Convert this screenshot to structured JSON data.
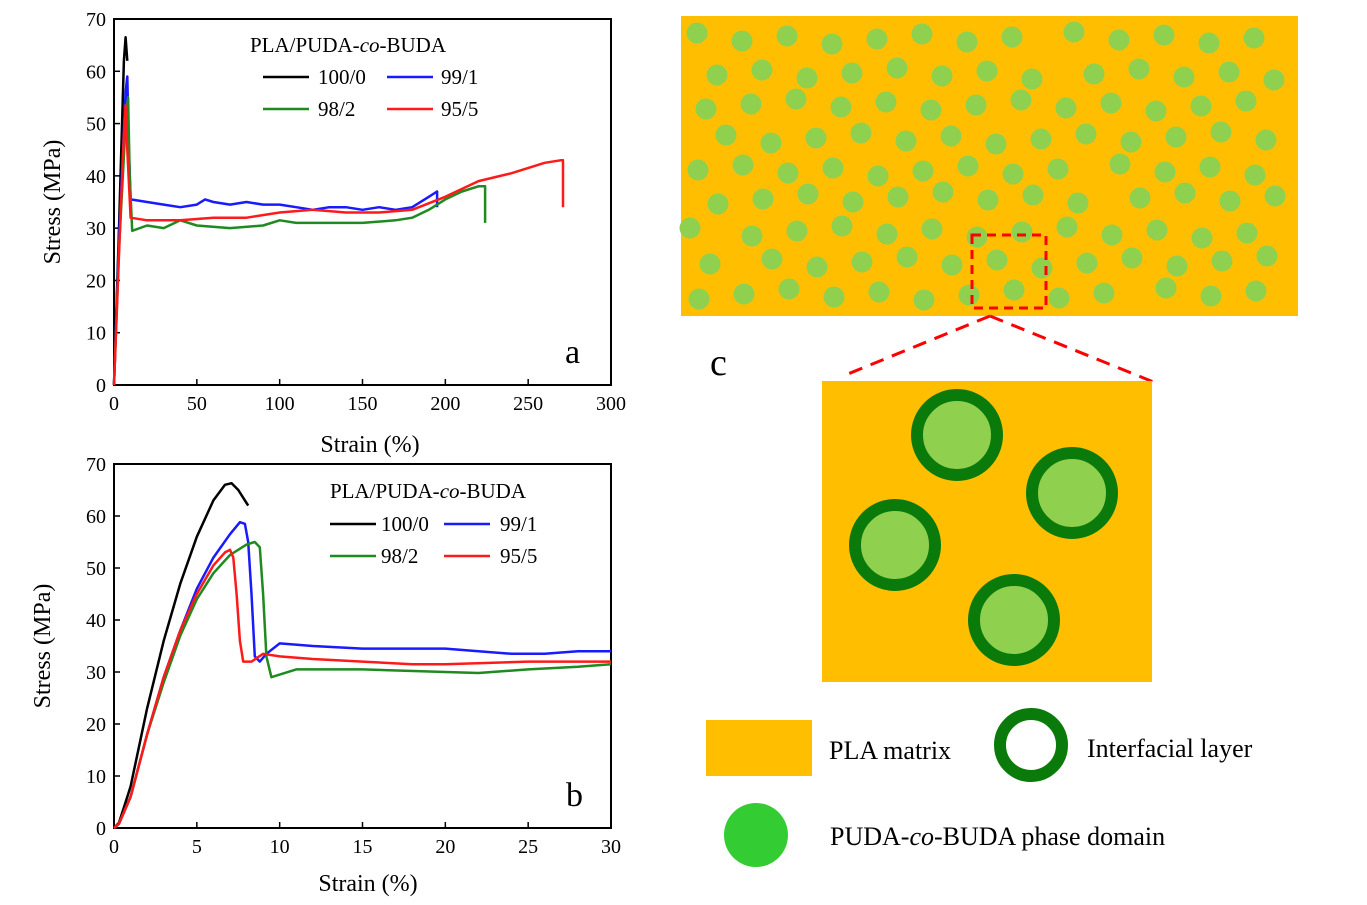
{
  "legend_title": {
    "prefix": "PLA/PUDA-",
    "italic": "co",
    "suffix": "-BUDA"
  },
  "series_colors": {
    "100/0": "#000000",
    "99/1": "#1a1aff",
    "98/2": "#1f8a1f",
    "95/5": "#ff1a1a"
  },
  "chart_data": [
    {
      "type": "line",
      "panel_label": "a",
      "xlabel": "Strain (%)",
      "ylabel": "Stress (MPa)",
      "xlim": [
        0,
        300
      ],
      "ylim": [
        0,
        70
      ],
      "xticks": [
        "0",
        "50",
        "100",
        "150",
        "200",
        "250",
        "300"
      ],
      "yticks": [
        "0",
        "10",
        "20",
        "30",
        "40",
        "50",
        "60",
        "70"
      ],
      "legend_position": "top-center",
      "series": [
        {
          "name": "100/0",
          "x": [
            0,
            3,
            6,
            7,
            8
          ],
          "y": [
            0,
            30,
            62,
            66.5,
            62
          ]
        },
        {
          "name": "99/1",
          "x": [
            0,
            3,
            7,
            8,
            9,
            10,
            20,
            30,
            40,
            50,
            55,
            60,
            70,
            80,
            90,
            100,
            110,
            120,
            130,
            140,
            150,
            160,
            170,
            180,
            190,
            195,
            195
          ],
          "y": [
            0,
            28,
            56,
            59,
            45,
            35.5,
            35,
            34.5,
            34,
            34.5,
            35.5,
            35,
            34.5,
            35,
            34.5,
            34.5,
            34,
            33.5,
            34,
            34,
            33.5,
            34,
            33.5,
            34,
            36,
            37,
            34
          ]
        },
        {
          "name": "98/2",
          "x": [
            0,
            3,
            7,
            8.5,
            9.5,
            11,
            20,
            30,
            40,
            50,
            70,
            90,
            100,
            110,
            130,
            150,
            170,
            180,
            190,
            200,
            210,
            220,
            224,
            224
          ],
          "y": [
            0,
            26,
            50,
            55,
            40,
            29.5,
            30.5,
            30,
            31.5,
            30.5,
            30,
            30.5,
            31.5,
            31,
            31,
            31,
            31.5,
            32,
            33.5,
            35.5,
            37,
            38,
            38,
            31
          ]
        },
        {
          "name": "95/5",
          "x": [
            0,
            3,
            6,
            7,
            8,
            10,
            20,
            40,
            60,
            80,
            100,
            120,
            140,
            160,
            180,
            200,
            220,
            240,
            260,
            270,
            271,
            271
          ],
          "y": [
            0,
            25,
            48,
            53.5,
            45,
            32,
            31.5,
            31.5,
            32,
            32,
            33,
            33.5,
            33,
            33,
            33.5,
            36,
            39,
            40.5,
            42.5,
            43,
            43,
            34
          ]
        }
      ]
    },
    {
      "type": "line",
      "panel_label": "b",
      "xlabel": "Strain (%)",
      "ylabel": "Stress (MPa)",
      "xlim": [
        0,
        30
      ],
      "ylim": [
        0,
        70
      ],
      "xticks": [
        "0",
        "5",
        "10",
        "15",
        "20",
        "25",
        "30"
      ],
      "yticks": [
        "0",
        "10",
        "20",
        "30",
        "40",
        "50",
        "60",
        "70"
      ],
      "legend_position": "top-right",
      "series": [
        {
          "name": "100/0",
          "x": [
            0,
            0.3,
            1,
            2,
            3,
            4,
            5,
            6,
            6.7,
            7.1,
            7.5,
            7.9,
            8.1
          ],
          "y": [
            0,
            1,
            8,
            23,
            36,
            47,
            56,
            63,
            66,
            66.3,
            65,
            63,
            62
          ]
        },
        {
          "name": "99/1",
          "x": [
            0,
            0.3,
            1,
            2,
            3,
            4,
            5,
            6,
            7,
            7.6,
            7.9,
            8.1,
            8.3,
            8.5,
            8.8,
            9.2,
            10,
            12,
            15,
            18,
            20,
            22,
            24,
            26,
            28,
            30
          ],
          "y": [
            0,
            0.8,
            6,
            18,
            29,
            38,
            46,
            52,
            56.5,
            58.8,
            58.5,
            55,
            45,
            33,
            32,
            33.5,
            35.5,
            35,
            34.5,
            34.5,
            34.5,
            34,
            33.5,
            33.5,
            34,
            34
          ]
        },
        {
          "name": "98/2",
          "x": [
            0,
            0.3,
            1,
            2,
            3,
            4,
            5,
            6,
            7,
            8,
            8.5,
            8.8,
            9.0,
            9.2,
            9.5,
            10,
            11,
            15,
            20,
            22,
            25,
            28,
            30
          ],
          "y": [
            0,
            0.8,
            6,
            18,
            28,
            37,
            44,
            49,
            52.5,
            54.5,
            55,
            54,
            45,
            33,
            29,
            29.5,
            30.5,
            30.5,
            30,
            29.8,
            30.5,
            31,
            31.5
          ]
        },
        {
          "name": "95/5",
          "x": [
            0,
            0.3,
            1,
            2,
            3,
            4,
            5,
            6,
            6.7,
            7.0,
            7.2,
            7.4,
            7.6,
            7.8,
            8.3,
            9,
            10,
            12,
            15,
            18,
            20,
            25,
            30
          ],
          "y": [
            0,
            0.8,
            6,
            18,
            29,
            38,
            45,
            50.5,
            53,
            53.5,
            52,
            45,
            36,
            32,
            32,
            33.5,
            33,
            32.5,
            32,
            31.5,
            31.5,
            32,
            32
          ]
        }
      ]
    }
  ],
  "diagram": {
    "panel_label": "c",
    "legend": {
      "matrix": "PLA matrix",
      "interfacial": "Interfacial layer",
      "domain_prefix": "PUDA-",
      "domain_italic": "co",
      "domain_suffix": "-BUDA phase domain"
    },
    "colors": {
      "matrix": "#ffbf00",
      "domain": "#8fd14f",
      "domain_bright": "#33cc33",
      "interface": "#0a7a0a",
      "highlight": "#ff0000"
    }
  }
}
